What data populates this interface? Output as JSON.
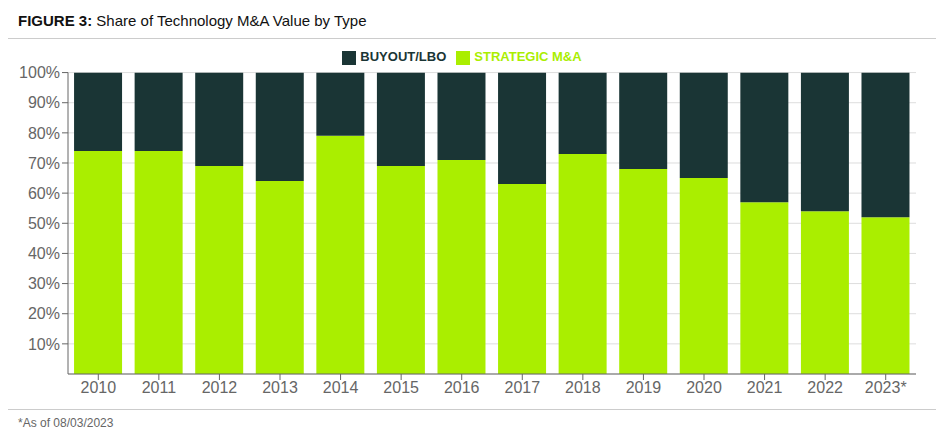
{
  "chart_data": {
    "type": "bar",
    "title": "FIGURE 3: Share of Technology M&A Value by Type",
    "annotations": [
      "*As of 08/03/2023"
    ],
    "categories": [
      "2010",
      "2011",
      "2012",
      "2013",
      "2014",
      "2015",
      "2016",
      "2017",
      "2018",
      "2019",
      "2020",
      "2021",
      "2022",
      "2023*"
    ],
    "series": [
      {
        "name": "STRATEGIC M&A",
        "color": "#aaee00",
        "values": [
          74,
          74,
          69,
          64,
          79,
          69,
          71,
          63,
          73,
          68,
          65,
          57,
          54,
          52
        ]
      },
      {
        "name": "BUYOUT/LBO",
        "color": "#1a3535",
        "values": [
          26,
          26,
          31,
          36,
          21,
          31,
          29,
          37,
          27,
          32,
          35,
          43,
          46,
          48
        ]
      }
    ],
    "stacked": true,
    "ylim": [
      0,
      100
    ],
    "yticks": [
      {
        "value": 10,
        "label": "10%"
      },
      {
        "value": 20,
        "label": "20%"
      },
      {
        "value": 30,
        "label": "30%"
      },
      {
        "value": 40,
        "label": "40%"
      },
      {
        "value": 50,
        "label": "50%"
      },
      {
        "value": 60,
        "label": "60%"
      },
      {
        "value": 70,
        "label": "70%"
      },
      {
        "value": 80,
        "label": "80%"
      },
      {
        "value": 90,
        "label": "90%"
      },
      {
        "value": 100,
        "label": "100%"
      }
    ],
    "grid": true,
    "legend": "top"
  }
}
